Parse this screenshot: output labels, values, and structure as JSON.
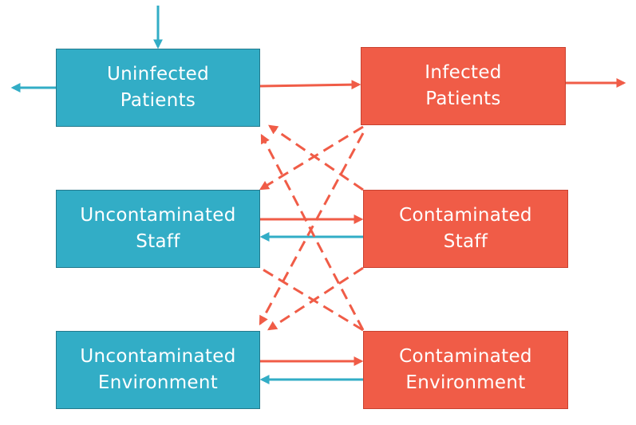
{
  "colors": {
    "teal": "#32adc6",
    "coral": "#f05c47"
  },
  "nodes": {
    "uninfected_patients": {
      "label": "Uninfected\nPatients"
    },
    "infected_patients": {
      "label": "Infected\nPatients"
    },
    "uncontaminated_staff": {
      "label": "Uncontaminated\nStaff"
    },
    "contaminated_staff": {
      "label": "Contaminated\nStaff"
    },
    "uncontaminated_environment": {
      "label": "Uncontaminated\nEnvironment"
    },
    "contaminated_environment": {
      "label": "Contaminated\nEnvironment"
    }
  }
}
